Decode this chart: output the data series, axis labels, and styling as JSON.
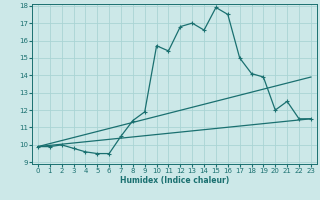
{
  "xlabel": "Humidex (Indice chaleur)",
  "ylabel": "",
  "xlim": [
    -0.5,
    23.5
  ],
  "ylim": [
    9,
    18
  ],
  "xticks": [
    0,
    1,
    2,
    3,
    4,
    5,
    6,
    7,
    8,
    9,
    10,
    11,
    12,
    13,
    14,
    15,
    16,
    17,
    18,
    19,
    20,
    21,
    22,
    23
  ],
  "yticks": [
    9,
    10,
    11,
    12,
    13,
    14,
    15,
    16,
    17,
    18
  ],
  "bg_color": "#cce8e8",
  "line_color": "#1a7070",
  "grid_color": "#aad4d4",
  "line1_x": [
    0,
    1,
    2,
    3,
    4,
    5,
    6,
    7,
    8,
    9,
    10,
    11,
    12,
    13,
    14,
    15,
    16,
    17,
    18,
    19,
    20,
    21,
    22,
    23
  ],
  "line1_y": [
    9.9,
    9.9,
    10.0,
    9.8,
    9.6,
    9.5,
    9.5,
    10.5,
    11.4,
    11.9,
    15.7,
    15.4,
    16.8,
    17.0,
    16.6,
    17.9,
    17.5,
    15.0,
    14.1,
    13.9,
    12.0,
    12.5,
    11.5,
    11.5
  ],
  "line2_x": [
    0,
    23
  ],
  "line2_y": [
    9.9,
    13.9
  ],
  "line3_x": [
    0,
    23
  ],
  "line3_y": [
    9.9,
    11.5
  ]
}
